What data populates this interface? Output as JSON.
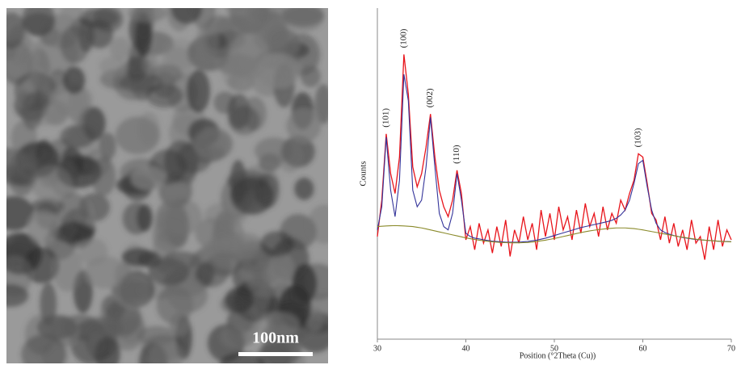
{
  "tem_image": {
    "scale_bar_label": "100nm"
  },
  "chart_data": {
    "type": "line",
    "x_label": "Position (°2Theta (Cu))",
    "y_label": "Counts",
    "xlim": [
      30,
      70
    ],
    "xticks": [
      30,
      40,
      50,
      60,
      70
    ],
    "ylim": [
      0,
      100
    ],
    "x": [
      30,
      30.5,
      31,
      31.5,
      32,
      32.5,
      33,
      33.5,
      34,
      34.5,
      35,
      35.5,
      36,
      36.5,
      37,
      37.5,
      38,
      38.5,
      39,
      39.5,
      40,
      40.5,
      41,
      41.5,
      42,
      42.5,
      43,
      43.5,
      44,
      44.5,
      45,
      45.5,
      46,
      46.5,
      47,
      47.5,
      48,
      48.5,
      49,
      49.5,
      50,
      50.5,
      51,
      51.5,
      52,
      52.5,
      53,
      53.5,
      54,
      54.5,
      55,
      55.5,
      56,
      56.5,
      57,
      57.5,
      58,
      58.5,
      59,
      59.5,
      60,
      60.5,
      61,
      61.5,
      62,
      62.5,
      63,
      63.5,
      64,
      64.5,
      65,
      65.5,
      66,
      66.5,
      67,
      67.5,
      68,
      68.5,
      69,
      69.5,
      70
    ],
    "series": [
      {
        "color": "#e8141b",
        "values": [
          31,
          42,
          62,
          50,
          44,
          55,
          86,
          74,
          52,
          46,
          50,
          58,
          68,
          55,
          45,
          40,
          37,
          42,
          51,
          44,
          30,
          34,
          27,
          35,
          29,
          33,
          26,
          34,
          28,
          36,
          25,
          33,
          29,
          37,
          30,
          35,
          27,
          39,
          31,
          38,
          30,
          40,
          33,
          37,
          30,
          39,
          32,
          41,
          34,
          38,
          31,
          40,
          33,
          38,
          35,
          42,
          39,
          44,
          48,
          56,
          55,
          47,
          38,
          36,
          30,
          37,
          29,
          35,
          28,
          33,
          27,
          36,
          29,
          31,
          24,
          34,
          27,
          36,
          28,
          33,
          30
        ]
      },
      {
        "color": "#34349a",
        "values": [
          33,
          40,
          61,
          45,
          37,
          48,
          80,
          72,
          45,
          40,
          42,
          52,
          67,
          52,
          38,
          34,
          33,
          38,
          50,
          42,
          32,
          31,
          30.5,
          30.3,
          30,
          29.8,
          29.6,
          29.5,
          29.4,
          29.3,
          29.3,
          29.3,
          29.3,
          29.4,
          29.5,
          29.7,
          29.9,
          30.2,
          30.5,
          30.9,
          31.3,
          31.7,
          32.1,
          32.5,
          32.9,
          33.3,
          33.7,
          34,
          34.3,
          34.6,
          34.9,
          35.2,
          35.5,
          35.9,
          36.5,
          37.5,
          39,
          42,
          47,
          53,
          54,
          46,
          39,
          35,
          33,
          32.2,
          31.7,
          31.3,
          31,
          30.7,
          30.5,
          30.3,
          30.1,
          30,
          29.9,
          29.8,
          29.7,
          29.6,
          29.5,
          29.5,
          29.4
        ]
      },
      {
        "color": "#8a8a2a",
        "values": [
          34,
          34.1,
          34.2,
          34.25,
          34.3,
          34.25,
          34.2,
          34.1,
          34,
          33.8,
          33.6,
          33.3,
          33,
          32.7,
          32.4,
          32.1,
          31.8,
          31.5,
          31.2,
          30.9,
          30.6,
          30.35,
          30.1,
          29.9,
          29.7,
          29.55,
          29.4,
          29.3,
          29.2,
          29.15,
          29.1,
          29.1,
          29.1,
          29.15,
          29.2,
          29.35,
          29.5,
          29.7,
          29.9,
          30.15,
          30.4,
          30.7,
          31,
          31.3,
          31.6,
          31.9,
          32.2,
          32.45,
          32.7,
          32.9,
          33.1,
          33.25,
          33.4,
          33.5,
          33.6,
          33.6,
          33.6,
          33.5,
          33.4,
          33.2,
          33,
          32.75,
          32.5,
          32.25,
          32,
          31.75,
          31.5,
          31.25,
          31,
          30.8,
          30.6,
          30.4,
          30.2,
          30.05,
          29.9,
          29.8,
          29.7,
          29.6,
          29.5,
          29.45,
          29.4
        ]
      }
    ],
    "annotations": [
      {
        "text": "(101)",
        "x": 31
      },
      {
        "text": "(100)",
        "x": 33
      },
      {
        "text": "(002)",
        "x": 36
      },
      {
        "text": "(110)",
        "x": 39
      },
      {
        "text": "(103)",
        "x": 59.5
      }
    ]
  }
}
